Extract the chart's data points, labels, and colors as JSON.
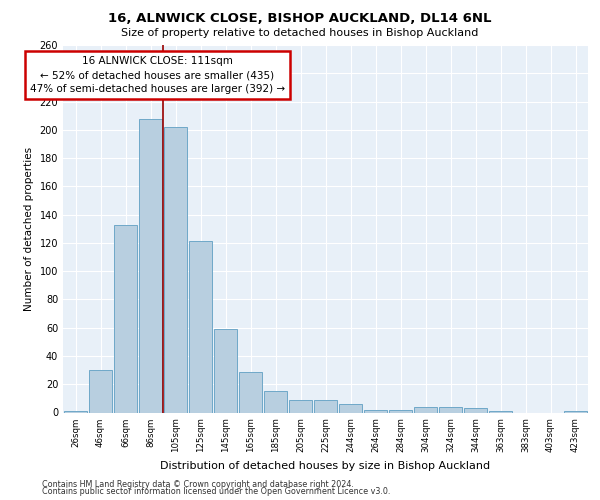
{
  "title1": "16, ALNWICK CLOSE, BISHOP AUCKLAND, DL14 6NL",
  "title2": "Size of property relative to detached houses in Bishop Auckland",
  "xlabel": "Distribution of detached houses by size in Bishop Auckland",
  "ylabel": "Number of detached properties",
  "categories": [
    "26sqm",
    "46sqm",
    "66sqm",
    "86sqm",
    "105sqm",
    "125sqm",
    "145sqm",
    "165sqm",
    "185sqm",
    "205sqm",
    "225sqm",
    "244sqm",
    "264sqm",
    "284sqm",
    "304sqm",
    "324sqm",
    "344sqm",
    "363sqm",
    "383sqm",
    "403sqm",
    "423sqm"
  ],
  "values": [
    1,
    30,
    133,
    208,
    202,
    121,
    59,
    29,
    15,
    9,
    9,
    6,
    2,
    2,
    4,
    4,
    3,
    1,
    0,
    0,
    1
  ],
  "bar_color": "#b8cfe0",
  "bar_edge_color": "#6fa8c8",
  "vline_x": 3.5,
  "vline_color": "#990000",
  "annotation_text": "16 ALNWICK CLOSE: 111sqm\n← 52% of detached houses are smaller (435)\n47% of semi-detached houses are larger (392) →",
  "annotation_box_color": "#ffffff",
  "annotation_box_edge": "#cc0000",
  "ylim": [
    0,
    260
  ],
  "yticks": [
    0,
    20,
    40,
    60,
    80,
    100,
    120,
    140,
    160,
    180,
    200,
    220,
    240,
    260
  ],
  "footer1": "Contains HM Land Registry data © Crown copyright and database right 2024.",
  "footer2": "Contains public sector information licensed under the Open Government Licence v3.0.",
  "bg_color": "#e8f0f8",
  "fig_bg": "#ffffff",
  "title1_fontsize": 9.5,
  "title2_fontsize": 8,
  "ylabel_fontsize": 7.5,
  "xlabel_fontsize": 8,
  "tick_fontsize": 7,
  "xtick_fontsize": 6.2,
  "ann_fontsize": 7.5,
  "footer_fontsize": 5.8
}
